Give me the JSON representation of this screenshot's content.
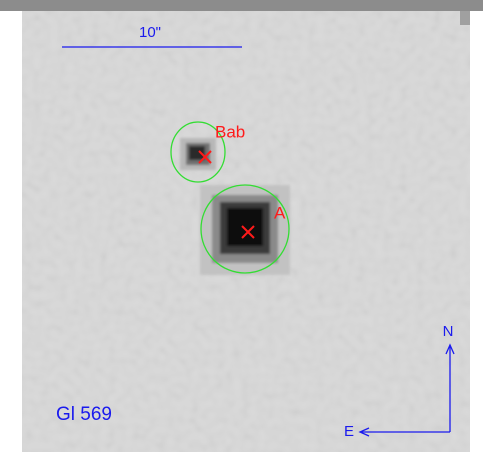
{
  "scale_bar": {
    "label": "10\""
  },
  "sources": [
    {
      "label": "Bab"
    },
    {
      "label": "A"
    }
  ],
  "compass": {
    "north": "N",
    "east": "E"
  },
  "target": {
    "label": "Gl 569"
  }
}
